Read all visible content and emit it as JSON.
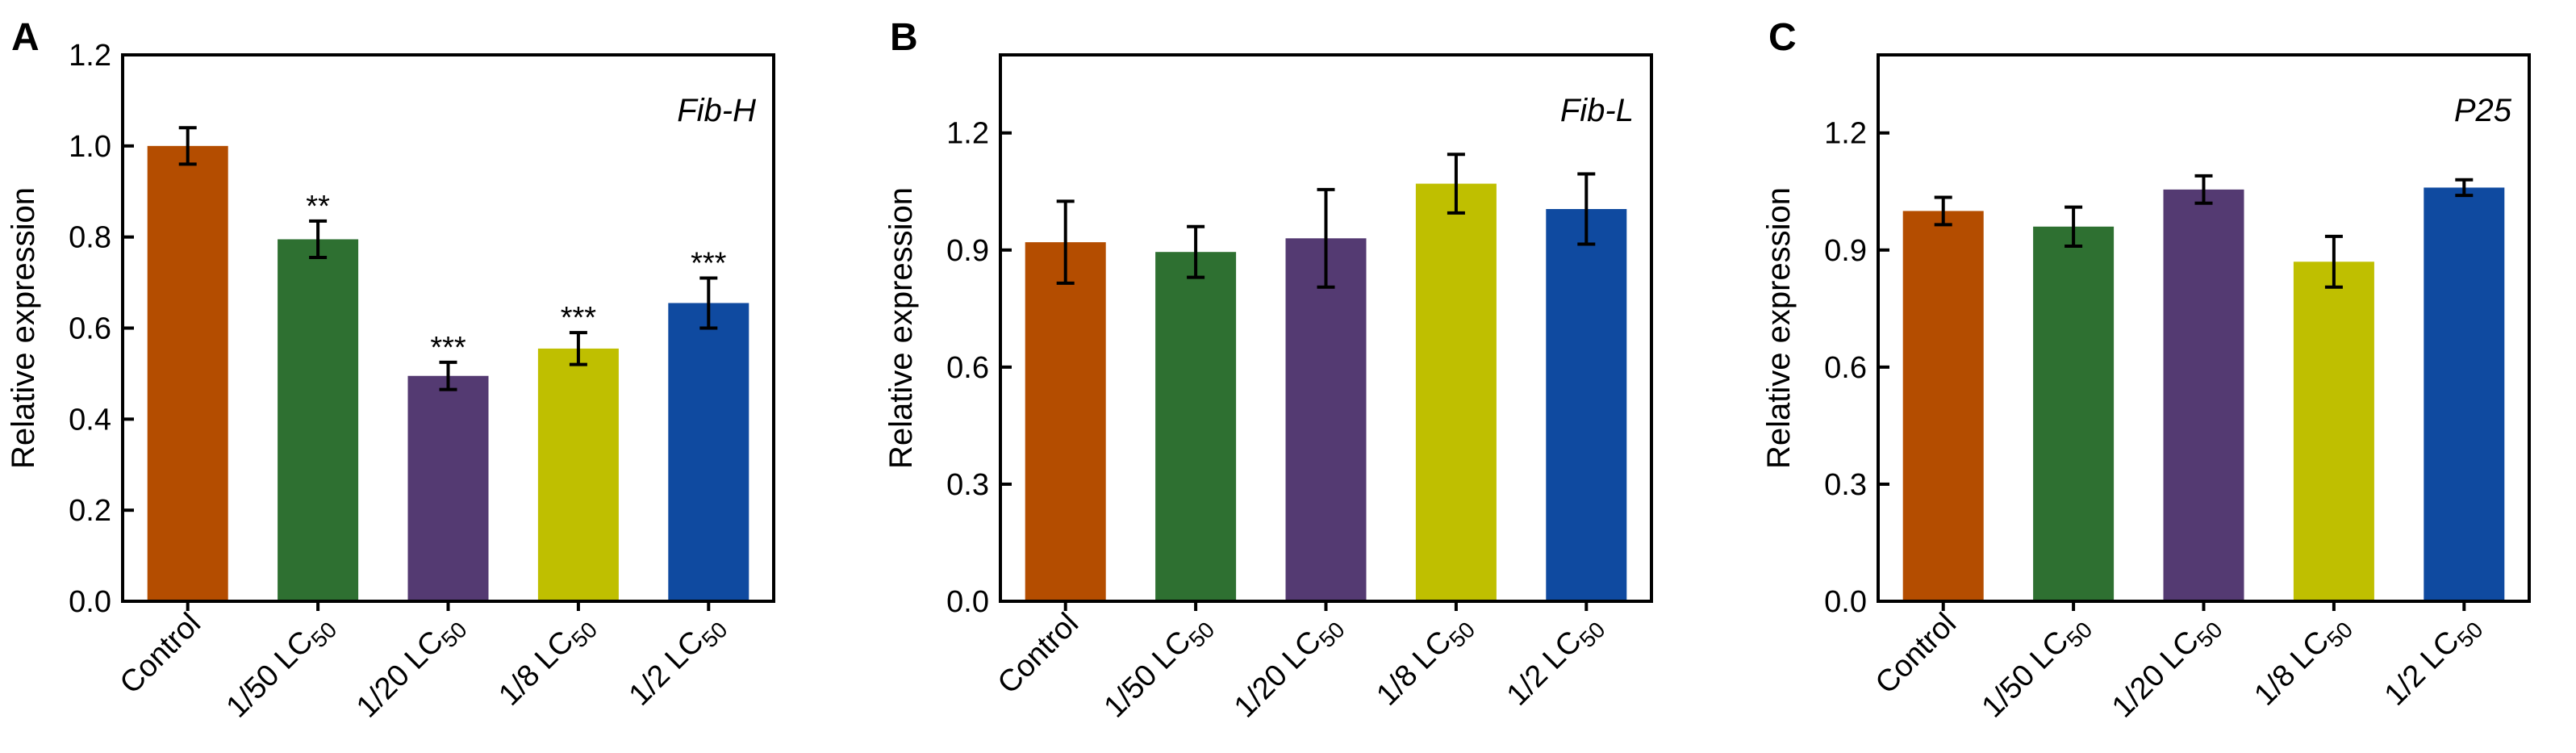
{
  "chart_data": [
    {
      "panel": "A",
      "type": "bar",
      "gene": "Fib-H",
      "ylabel": "Relative expression",
      "ylim": [
        0,
        1.2
      ],
      "yticks": [
        "0.0",
        "0.2",
        "0.4",
        "0.6",
        "0.8",
        "1.0",
        "1.2"
      ],
      "categories": [
        {
          "main": "Control",
          "sub": ""
        },
        {
          "main": "1/50 LC",
          "sub": "50"
        },
        {
          "main": "1/20 LC",
          "sub": "50"
        },
        {
          "main": "1/8 LC",
          "sub": "50"
        },
        {
          "main": "1/2 LC",
          "sub": "50"
        }
      ],
      "values": [
        1.0,
        0.795,
        0.495,
        0.555,
        0.655
      ],
      "errors": [
        0.04,
        0.04,
        0.03,
        0.035,
        0.055
      ],
      "significance": [
        "",
        "**",
        "***",
        "***",
        "***"
      ],
      "colors": [
        "#b44d00",
        "#2e7031",
        "#543a72",
        "#bfbf00",
        "#0f4aa0"
      ]
    },
    {
      "panel": "B",
      "type": "bar",
      "gene": "Fib-L",
      "ylabel": "Relative expression",
      "ylim": [
        0,
        1.4
      ],
      "yticks": [
        "0.0",
        "0.3",
        "0.6",
        "0.9",
        "1.2"
      ],
      "categories": [
        {
          "main": "Control",
          "sub": ""
        },
        {
          "main": "1/50 LC",
          "sub": "50"
        },
        {
          "main": "1/20 LC",
          "sub": "50"
        },
        {
          "main": "1/8 LC",
          "sub": "50"
        },
        {
          "main": "1/2 LC",
          "sub": "50"
        }
      ],
      "values": [
        0.92,
        0.895,
        0.93,
        1.07,
        1.005
      ],
      "errors": [
        0.105,
        0.065,
        0.125,
        0.075,
        0.09
      ],
      "significance": [
        "",
        "",
        "",
        "",
        ""
      ],
      "colors": [
        "#b44d00",
        "#2e7031",
        "#543a72",
        "#bfbf00",
        "#0f4aa0"
      ]
    },
    {
      "panel": "C",
      "type": "bar",
      "gene": "P25",
      "ylabel": "Relative expression",
      "ylim": [
        0,
        1.4
      ],
      "yticks": [
        "0.0",
        "0.3",
        "0.6",
        "0.9",
        "1.2"
      ],
      "categories": [
        {
          "main": "Control",
          "sub": ""
        },
        {
          "main": "1/50 LC",
          "sub": "50"
        },
        {
          "main": "1/20 LC",
          "sub": "50"
        },
        {
          "main": "1/8 LC",
          "sub": "50"
        },
        {
          "main": "1/2 LC",
          "sub": "50"
        }
      ],
      "values": [
        1.0,
        0.96,
        1.055,
        0.87,
        1.06
      ],
      "errors": [
        0.035,
        0.05,
        0.035,
        0.065,
        0.02
      ],
      "significance": [
        "",
        "",
        "",
        "",
        ""
      ],
      "colors": [
        "#b44d00",
        "#2e7031",
        "#543a72",
        "#bfbf00",
        "#0f4aa0"
      ]
    }
  ]
}
